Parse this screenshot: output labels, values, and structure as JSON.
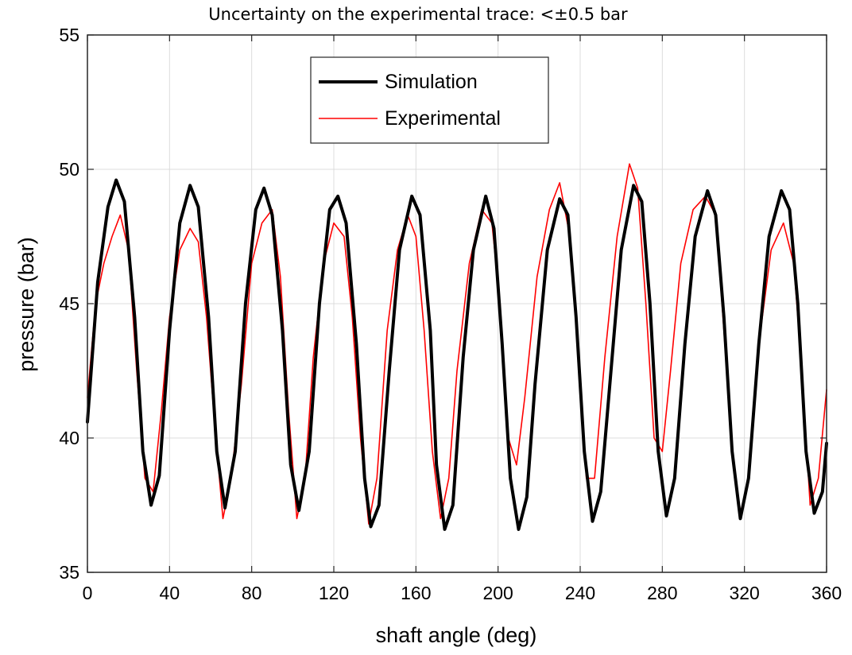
{
  "chart_data": {
    "type": "line",
    "title": "Uncertainty on the experimental trace: <±0.5 bar",
    "xlabel": "shaft angle (deg)",
    "ylabel": "pressure (bar)",
    "xlim": [
      0,
      360
    ],
    "ylim": [
      35,
      55
    ],
    "xticks": [
      "0",
      "40",
      "80",
      "120",
      "160",
      "200",
      "240",
      "280",
      "320",
      "360"
    ],
    "yticks": [
      "35",
      "40",
      "45",
      "50",
      "55"
    ],
    "grid": true,
    "legend_position": "top-center",
    "series": [
      {
        "name": "Simulation",
        "color": "#000000",
        "x": [
          0,
          5,
          10,
          14,
          18,
          23,
          27,
          31,
          35,
          40,
          45,
          50,
          54,
          59,
          63,
          67,
          72,
          77,
          82,
          86,
          90,
          95,
          99,
          103,
          108,
          113,
          118,
          122,
          126,
          131,
          135,
          138,
          142,
          147,
          152,
          158,
          162,
          167,
          170,
          174,
          178,
          183,
          188,
          194,
          198,
          202,
          206,
          210,
          214,
          218,
          224,
          230,
          234,
          238,
          242,
          246,
          250,
          255,
          260,
          266,
          270,
          274,
          278,
          282,
          286,
          291,
          296,
          302,
          306,
          310,
          314,
          318,
          322,
          327,
          332,
          338,
          342,
          346,
          350,
          354,
          358,
          360
        ],
        "values": [
          40.6,
          45.8,
          48.6,
          49.6,
          48.8,
          44.5,
          39.5,
          37.5,
          38.6,
          44.0,
          48.0,
          49.4,
          48.6,
          44.5,
          39.5,
          37.4,
          39.5,
          45.0,
          48.5,
          49.3,
          48.3,
          44.0,
          39.0,
          37.3,
          39.5,
          45.0,
          48.5,
          49.0,
          48.0,
          43.5,
          38.5,
          36.7,
          37.5,
          42.5,
          47.0,
          49.0,
          48.3,
          44.0,
          39.0,
          36.6,
          37.5,
          43.0,
          47.0,
          49.0,
          47.8,
          43.5,
          38.5,
          36.6,
          37.8,
          42.0,
          47.0,
          48.9,
          48.3,
          44.5,
          39.5,
          36.9,
          38.0,
          42.5,
          47.0,
          49.4,
          48.8,
          45.0,
          39.5,
          37.1,
          38.5,
          43.5,
          47.5,
          49.2,
          48.3,
          44.5,
          39.5,
          37.0,
          38.5,
          43.5,
          47.5,
          49.2,
          48.5,
          45.0,
          39.5,
          37.2,
          38.0,
          39.8
        ]
      },
      {
        "name": "Experimental",
        "color": "#ff0000",
        "x": [
          0,
          4,
          8,
          12,
          16,
          20,
          24,
          28,
          32,
          36,
          40,
          45,
          50,
          54,
          58,
          62,
          66,
          70,
          75,
          80,
          85,
          90,
          94,
          98,
          102,
          106,
          110,
          115,
          120,
          125,
          129,
          133,
          137,
          141,
          146,
          151,
          156,
          160,
          164,
          168,
          172,
          176,
          180,
          186,
          192,
          197,
          201,
          205,
          209,
          213,
          219,
          225,
          230,
          235,
          239,
          243,
          247,
          252,
          258,
          264,
          268,
          272,
          276,
          280,
          284,
          289,
          295,
          301,
          306,
          310,
          314,
          318,
          322,
          327,
          333,
          339,
          344,
          348,
          352,
          356,
          360
        ],
        "values": [
          41.5,
          45.0,
          46.5,
          47.5,
          48.3,
          47.0,
          42.5,
          38.5,
          38.0,
          41.0,
          44.5,
          47.0,
          47.8,
          47.3,
          44.5,
          40.5,
          37.0,
          38.5,
          42.0,
          46.5,
          48.0,
          48.5,
          46.0,
          41.0,
          37.0,
          38.5,
          43.0,
          46.5,
          48.0,
          47.5,
          44.5,
          40.0,
          36.8,
          38.5,
          44.0,
          47.0,
          48.3,
          47.5,
          44.0,
          39.5,
          37.0,
          38.5,
          42.5,
          46.5,
          48.5,
          48.0,
          45.0,
          40.0,
          39.0,
          41.5,
          46.0,
          48.5,
          49.5,
          47.5,
          43.5,
          38.5,
          38.5,
          43.0,
          47.5,
          50.2,
          49.3,
          45.0,
          40.0,
          39.5,
          42.5,
          46.5,
          48.5,
          49.0,
          48.3,
          44.0,
          39.5,
          37.2,
          38.5,
          43.5,
          47.0,
          48.0,
          46.5,
          42.5,
          37.5,
          38.5,
          41.8
        ]
      }
    ]
  }
}
